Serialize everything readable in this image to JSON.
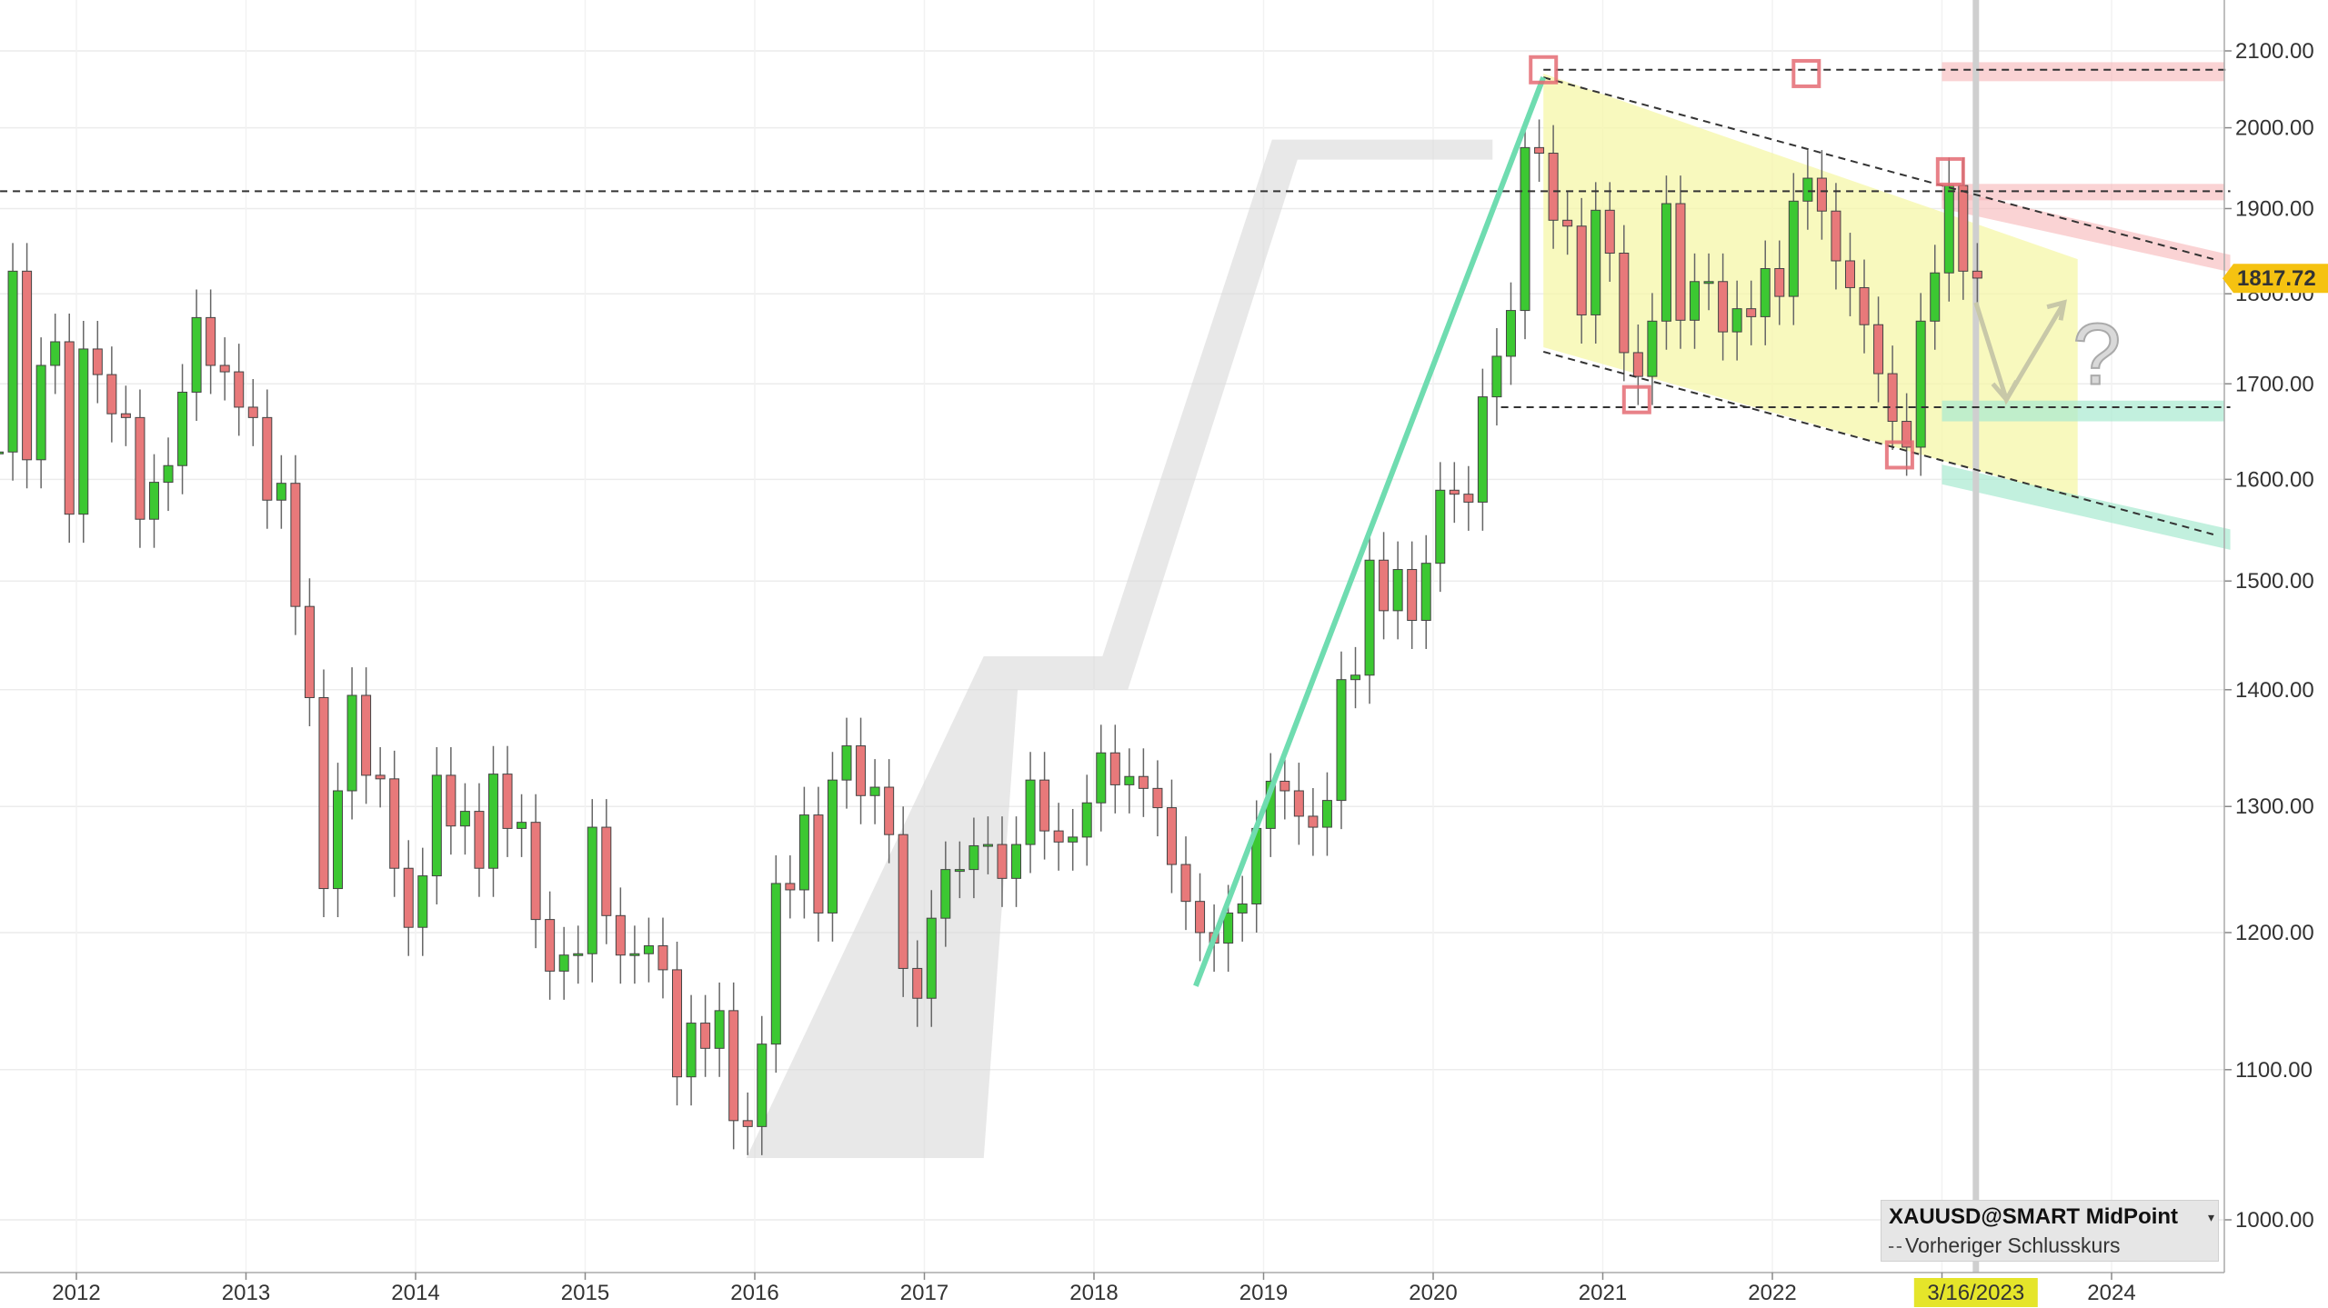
{
  "chart_data": {
    "type": "candlestick",
    "instrument_label": "XAUUSD@SMART MidPoint",
    "legend_prev_close": "Vorheriger Schlusskurs",
    "last_price_label": "1817.72",
    "date_marker_label": "3/16/2023",
    "y_scale": "log",
    "ylim": [
      970,
      2160
    ],
    "yticks": [
      "1000.00",
      "1100.00",
      "1200.00",
      "1300.00",
      "1400.00",
      "1500.00",
      "1600.00",
      "1700.00",
      "1800.00",
      "1900.00",
      "2000.00",
      "2100.00"
    ],
    "xticks": [
      "2012",
      "2013",
      "2014",
      "2015",
      "2016",
      "2017",
      "2018",
      "2019",
      "2020",
      "2021",
      "2022",
      "2023",
      "2024"
    ],
    "x_range_years": [
      2011.55,
      2024.7
    ],
    "grid": true,
    "colors": {
      "up": "#3cc832",
      "down": "#e8797a",
      "channel_fill": "#f6f7a8",
      "arrow_green": "#6fdcb0",
      "price_tag": "#f5c211",
      "date_tag": "#e5e52a",
      "resistance_zone": "#f7b5b8",
      "support_zone": "#a8ead0",
      "shadow": "#d9d9d9"
    },
    "monthly_closes": [
      {
        "t": "2011-07",
        "c": 1628
      },
      {
        "t": "2011-08",
        "c": 1826
      },
      {
        "t": "2011-09",
        "c": 1620
      },
      {
        "t": "2011-10",
        "c": 1720
      },
      {
        "t": "2011-11",
        "c": 1746
      },
      {
        "t": "2011-12",
        "c": 1565
      },
      {
        "t": "2012-01",
        "c": 1738
      },
      {
        "t": "2012-02",
        "c": 1710
      },
      {
        "t": "2012-03",
        "c": 1668
      },
      {
        "t": "2012-04",
        "c": 1664
      },
      {
        "t": "2012-05",
        "c": 1560
      },
      {
        "t": "2012-06",
        "c": 1597
      },
      {
        "t": "2012-07",
        "c": 1614
      },
      {
        "t": "2012-08",
        "c": 1691
      },
      {
        "t": "2012-09",
        "c": 1773
      },
      {
        "t": "2012-10",
        "c": 1720
      },
      {
        "t": "2012-11",
        "c": 1713
      },
      {
        "t": "2012-12",
        "c": 1675
      },
      {
        "t": "2013-01",
        "c": 1664
      },
      {
        "t": "2013-02",
        "c": 1579
      },
      {
        "t": "2013-03",
        "c": 1596
      },
      {
        "t": "2013-04",
        "c": 1476
      },
      {
        "t": "2013-05",
        "c": 1393
      },
      {
        "t": "2013-06",
        "c": 1234
      },
      {
        "t": "2013-07",
        "c": 1313
      },
      {
        "t": "2013-08",
        "c": 1395
      },
      {
        "t": "2013-09",
        "c": 1326
      },
      {
        "t": "2013-10",
        "c": 1323
      },
      {
        "t": "2013-11",
        "c": 1250
      },
      {
        "t": "2013-12",
        "c": 1204
      },
      {
        "t": "2014-01",
        "c": 1244
      },
      {
        "t": "2014-02",
        "c": 1326
      },
      {
        "t": "2014-03",
        "c": 1284
      },
      {
        "t": "2014-04",
        "c": 1296
      },
      {
        "t": "2014-05",
        "c": 1250
      },
      {
        "t": "2014-06",
        "c": 1327
      },
      {
        "t": "2014-07",
        "c": 1282
      },
      {
        "t": "2014-08",
        "c": 1287
      },
      {
        "t": "2014-09",
        "c": 1210
      },
      {
        "t": "2014-10",
        "c": 1171
      },
      {
        "t": "2014-11",
        "c": 1183
      },
      {
        "t": "2014-12",
        "c": 1184
      },
      {
        "t": "2015-01",
        "c": 1283
      },
      {
        "t": "2015-02",
        "c": 1213
      },
      {
        "t": "2015-03",
        "c": 1183
      },
      {
        "t": "2015-04",
        "c": 1184
      },
      {
        "t": "2015-05",
        "c": 1190
      },
      {
        "t": "2015-06",
        "c": 1172
      },
      {
        "t": "2015-07",
        "c": 1095
      },
      {
        "t": "2015-08",
        "c": 1133
      },
      {
        "t": "2015-09",
        "c": 1115
      },
      {
        "t": "2015-10",
        "c": 1142
      },
      {
        "t": "2015-11",
        "c": 1065
      },
      {
        "t": "2015-12",
        "c": 1061
      },
      {
        "t": "2016-01",
        "c": 1118
      },
      {
        "t": "2016-02",
        "c": 1238
      },
      {
        "t": "2016-03",
        "c": 1233
      },
      {
        "t": "2016-04",
        "c": 1293
      },
      {
        "t": "2016-05",
        "c": 1215
      },
      {
        "t": "2016-06",
        "c": 1322
      },
      {
        "t": "2016-07",
        "c": 1351
      },
      {
        "t": "2016-08",
        "c": 1309
      },
      {
        "t": "2016-09",
        "c": 1316
      },
      {
        "t": "2016-10",
        "c": 1277
      },
      {
        "t": "2016-11",
        "c": 1173
      },
      {
        "t": "2016-12",
        "c": 1151
      },
      {
        "t": "2017-01",
        "c": 1211
      },
      {
        "t": "2017-02",
        "c": 1249
      },
      {
        "t": "2017-03",
        "c": 1249
      },
      {
        "t": "2017-04",
        "c": 1268
      },
      {
        "t": "2017-05",
        "c": 1269
      },
      {
        "t": "2017-06",
        "c": 1242
      },
      {
        "t": "2017-07",
        "c": 1269
      },
      {
        "t": "2017-08",
        "c": 1322
      },
      {
        "t": "2017-09",
        "c": 1280
      },
      {
        "t": "2017-10",
        "c": 1271
      },
      {
        "t": "2017-11",
        "c": 1275
      },
      {
        "t": "2017-12",
        "c": 1303
      },
      {
        "t": "2018-01",
        "c": 1345
      },
      {
        "t": "2018-02",
        "c": 1318
      },
      {
        "t": "2018-03",
        "c": 1325
      },
      {
        "t": "2018-04",
        "c": 1315
      },
      {
        "t": "2018-05",
        "c": 1299
      },
      {
        "t": "2018-06",
        "c": 1253
      },
      {
        "t": "2018-07",
        "c": 1224
      },
      {
        "t": "2018-08",
        "c": 1200
      },
      {
        "t": "2018-09",
        "c": 1192
      },
      {
        "t": "2018-10",
        "c": 1215
      },
      {
        "t": "2018-11",
        "c": 1222
      },
      {
        "t": "2018-12",
        "c": 1282
      },
      {
        "t": "2019-01",
        "c": 1321
      },
      {
        "t": "2019-02",
        "c": 1313
      },
      {
        "t": "2019-03",
        "c": 1292
      },
      {
        "t": "2019-04",
        "c": 1283
      },
      {
        "t": "2019-05",
        "c": 1305
      },
      {
        "t": "2019-06",
        "c": 1409
      },
      {
        "t": "2019-07",
        "c": 1413
      },
      {
        "t": "2019-08",
        "c": 1520
      },
      {
        "t": "2019-09",
        "c": 1472
      },
      {
        "t": "2019-10",
        "c": 1511
      },
      {
        "t": "2019-11",
        "c": 1463
      },
      {
        "t": "2019-12",
        "c": 1517
      },
      {
        "t": "2020-01",
        "c": 1589
      },
      {
        "t": "2020-02",
        "c": 1585
      },
      {
        "t": "2020-03",
        "c": 1577
      },
      {
        "t": "2020-04",
        "c": 1686
      },
      {
        "t": "2020-05",
        "c": 1730
      },
      {
        "t": "2020-06",
        "c": 1781
      },
      {
        "t": "2020-07",
        "c": 1975
      },
      {
        "t": "2020-08",
        "c": 1968
      },
      {
        "t": "2020-09",
        "c": 1886
      },
      {
        "t": "2020-10",
        "c": 1879
      },
      {
        "t": "2020-11",
        "c": 1776
      },
      {
        "t": "2020-12",
        "c": 1898
      },
      {
        "t": "2021-01",
        "c": 1847
      },
      {
        "t": "2021-02",
        "c": 1734
      },
      {
        "t": "2021-03",
        "c": 1708
      },
      {
        "t": "2021-04",
        "c": 1769
      },
      {
        "t": "2021-05",
        "c": 1906
      },
      {
        "t": "2021-06",
        "c": 1770
      },
      {
        "t": "2021-07",
        "c": 1814
      },
      {
        "t": "2021-08",
        "c": 1814
      },
      {
        "t": "2021-09",
        "c": 1757
      },
      {
        "t": "2021-10",
        "c": 1783
      },
      {
        "t": "2021-11",
        "c": 1774
      },
      {
        "t": "2021-12",
        "c": 1829
      },
      {
        "t": "2022-01",
        "c": 1797
      },
      {
        "t": "2022-02",
        "c": 1909
      },
      {
        "t": "2022-03",
        "c": 1937
      },
      {
        "t": "2022-04",
        "c": 1897
      },
      {
        "t": "2022-05",
        "c": 1838
      },
      {
        "t": "2022-06",
        "c": 1807
      },
      {
        "t": "2022-07",
        "c": 1765
      },
      {
        "t": "2022-08",
        "c": 1711
      },
      {
        "t": "2022-09",
        "c": 1660
      },
      {
        "t": "2022-10",
        "c": 1633
      },
      {
        "t": "2022-11",
        "c": 1769
      },
      {
        "t": "2022-12",
        "c": 1824
      },
      {
        "t": "2023-01",
        "c": 1928
      },
      {
        "t": "2023-02",
        "c": 1826
      },
      {
        "t": "2023-03",
        "c": 1818
      }
    ]
  }
}
